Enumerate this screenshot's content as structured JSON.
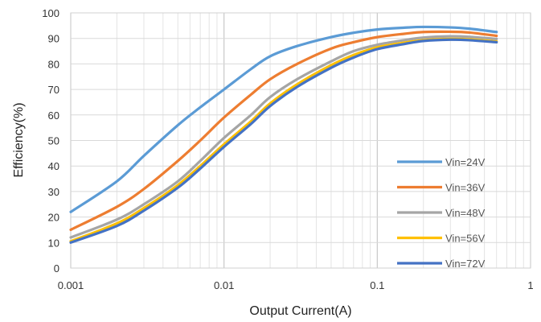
{
  "chart_data": {
    "type": "line",
    "title": "",
    "xlabel": "Output Current(A)",
    "ylabel": "Efficiency(%)",
    "xscale": "log",
    "xlim": [
      0.001,
      1
    ],
    "ylim": [
      0,
      100
    ],
    "grid": true,
    "legend_position": "bottom-right",
    "x_ticks": [
      "0.001",
      "0.01",
      "0.1",
      "1"
    ],
    "y_ticks": [
      "0",
      "10",
      "20",
      "30",
      "40",
      "50",
      "60",
      "70",
      "80",
      "90",
      "100"
    ],
    "series": [
      {
        "name": "Vin=24V",
        "color": "#5B9BD5",
        "x": [
          0.001,
          0.002,
          0.003,
          0.005,
          0.007,
          0.01,
          0.015,
          0.02,
          0.03,
          0.05,
          0.07,
          0.1,
          0.15,
          0.2,
          0.3,
          0.4,
          0.6
        ],
        "y": [
          22,
          34,
          44,
          56,
          63,
          70,
          78,
          83,
          87,
          90.5,
          92.2,
          93.5,
          94.2,
          94.5,
          94.3,
          93.8,
          92.5
        ]
      },
      {
        "name": "Vin=36V",
        "color": "#ED7D31",
        "x": [
          0.001,
          0.002,
          0.003,
          0.005,
          0.007,
          0.01,
          0.015,
          0.02,
          0.03,
          0.05,
          0.07,
          0.1,
          0.15,
          0.2,
          0.3,
          0.4,
          0.6
        ],
        "y": [
          15,
          24,
          31,
          42,
          50,
          59,
          68,
          74,
          80,
          86,
          88.5,
          90.5,
          91.8,
          92.5,
          92.6,
          92.3,
          91
        ],
        "label_note": ""
      },
      {
        "name": "Vin=48V",
        "color": "#A5A5A5",
        "x": [
          0.001,
          0.002,
          0.003,
          0.005,
          0.007,
          0.01,
          0.015,
          0.02,
          0.03,
          0.05,
          0.07,
          0.1,
          0.15,
          0.2,
          0.3,
          0.4,
          0.6
        ],
        "y": [
          12,
          19,
          25,
          34,
          42,
          51,
          60,
          67,
          74,
          81,
          85,
          87.5,
          89.3,
          90.3,
          90.8,
          90.6,
          89.8
        ]
      },
      {
        "name": "Vin=56V",
        "color": "#FFC000",
        "x": [
          0.001,
          0.002,
          0.003,
          0.005,
          0.007,
          0.01,
          0.015,
          0.02,
          0.03,
          0.05,
          0.07,
          0.1,
          0.15,
          0.2,
          0.3,
          0.4,
          0.6
        ],
        "y": [
          10.5,
          17.5,
          23.5,
          32.5,
          40,
          48.5,
          57.5,
          64.5,
          72,
          79.5,
          83.5,
          86.5,
          88.3,
          89.3,
          89.8,
          89.6,
          88.8
        ]
      },
      {
        "name": "Vin=72V",
        "color": "#4472C4",
        "x": [
          0.001,
          0.002,
          0.003,
          0.005,
          0.007,
          0.01,
          0.015,
          0.02,
          0.03,
          0.05,
          0.07,
          0.1,
          0.15,
          0.2,
          0.3,
          0.4,
          0.6
        ],
        "y": [
          10,
          16.5,
          22.5,
          31.5,
          39,
          47.5,
          56.5,
          63.5,
          71,
          78.5,
          82.5,
          85.8,
          87.8,
          89,
          89.5,
          89.3,
          88.5
        ]
      }
    ]
  }
}
